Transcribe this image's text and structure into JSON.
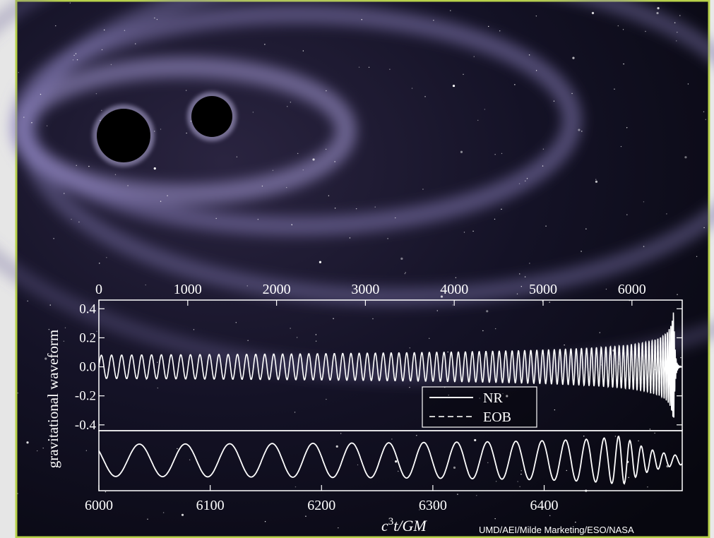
{
  "plot": {
    "top_axis": {
      "xlim": [
        0,
        6566
      ],
      "xticks": [
        0,
        1000,
        2000,
        3000,
        4000,
        5000,
        6000
      ]
    },
    "y_axis": {
      "label": "gravitational waveform",
      "ylim": [
        -0.44,
        0.46
      ],
      "yticks": [
        0.4,
        0.2,
        {
          "value": 0,
          "label": "0.0"
        },
        -0.2,
        -0.4
      ]
    },
    "bottom_axis": {
      "xlim": [
        6000,
        6524
      ],
      "xticks": [
        6000,
        6100,
        6200,
        6300,
        6400
      ]
    },
    "x_label": {
      "base": "c",
      "exponent": "3",
      "rest": "t/GM"
    },
    "legend": [
      "NR",
      "EOB"
    ]
  },
  "credit": "UMD/AEI/Milde Marketing/ESO/NASA"
}
